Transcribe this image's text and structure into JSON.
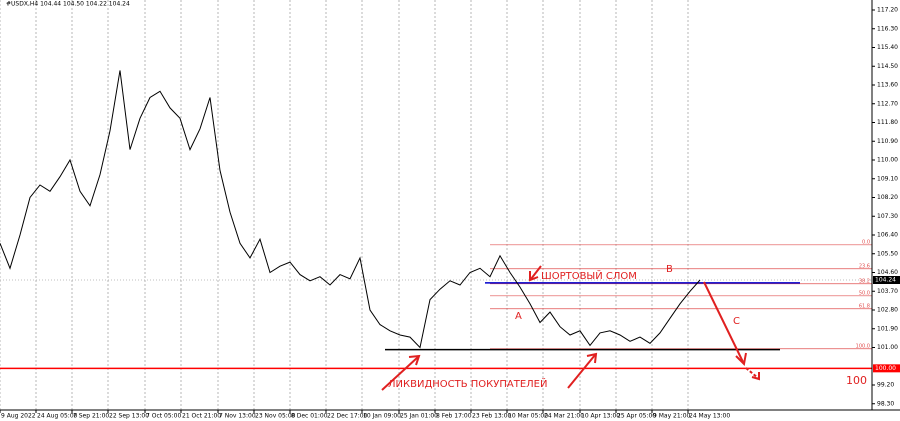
{
  "chart_data": {
    "type": "line",
    "title": "#USDX,H4  104.44 104.50 104.22 104.24",
    "color": "#000000",
    "values": [
      106.0,
      104.8,
      106.4,
      108.2,
      108.8,
      108.5,
      109.2,
      110.0,
      108.5,
      107.8,
      109.3,
      111.4,
      114.3,
      110.5,
      112.0,
      113.0,
      113.3,
      112.5,
      112.0,
      110.5,
      111.5,
      113.0,
      109.5,
      107.5,
      106.0,
      105.3,
      106.2,
      104.6,
      104.9,
      105.1,
      104.5,
      104.2,
      104.4,
      104.0,
      104.5,
      104.3,
      105.3,
      102.8,
      102.1,
      101.8,
      101.6,
      101.5,
      101.0,
      103.3,
      103.8,
      104.2,
      104.0,
      104.6,
      104.8,
      104.4,
      105.4,
      104.6,
      103.9,
      103.1,
      102.2,
      102.7,
      102.0,
      101.6,
      101.8,
      101.1,
      101.7,
      101.8,
      101.6,
      101.3,
      101.5,
      101.2,
      101.7,
      102.4,
      103.1,
      103.7,
      104.24
    ],
    "xlim": [
      0,
      87.2
    ],
    "ylim": [
      98.0,
      117.68
    ],
    "xticks": [
      {
        "value": 0,
        "label": "9 Aug 2022"
      },
      {
        "value": 3.6,
        "label": "24 Aug 05:00"
      },
      {
        "value": 7.2,
        "label": "7 Sep 21:00"
      },
      {
        "value": 10.8,
        "label": "22 Sep 13:00"
      },
      {
        "value": 14.5,
        "label": "7 Oct 05:00"
      },
      {
        "value": 18.1,
        "label": "21 Oct 21:00"
      },
      {
        "value": 21.8,
        "label": "7 Nov 13:00"
      },
      {
        "value": 25.4,
        "label": "23 Nov 05:00"
      },
      {
        "value": 29,
        "label": "8 Dec 01:00"
      },
      {
        "value": 32.6,
        "label": "22 Dec 17:00"
      },
      {
        "value": 36.2,
        "label": "10 Jan 09:00"
      },
      {
        "value": 39.9,
        "label": "25 Jan 01:00"
      },
      {
        "value": 43.5,
        "label": "8 Feb 17:00"
      },
      {
        "value": 47.1,
        "label": "23 Feb 13:00"
      },
      {
        "value": 50.7,
        "label": "10 Mar 05:00"
      },
      {
        "value": 54.3,
        "label": "24 Mar 21:00"
      },
      {
        "value": 58,
        "label": "10 Apr 13:00"
      },
      {
        "value": 61.6,
        "label": "25 Apr 05:00"
      },
      {
        "value": 65.2,
        "label": "9 May 21:00"
      },
      {
        "value": 68.8,
        "label": "24 May 13:00"
      }
    ],
    "yticks": [
      {
        "value": 117.2,
        "label": "117.20"
      },
      {
        "value": 116.3,
        "label": "116.30"
      },
      {
        "value": 115.4,
        "label": "115.40"
      },
      {
        "value": 114.5,
        "label": "114.50"
      },
      {
        "value": 113.6,
        "label": "113.60"
      },
      {
        "value": 112.7,
        "label": "112.70"
      },
      {
        "value": 111.8,
        "label": "111.80"
      },
      {
        "value": 110.9,
        "label": "110.90"
      },
      {
        "value": 110,
        "label": "110.00"
      },
      {
        "value": 109.1,
        "label": "109.10"
      },
      {
        "value": 108.2,
        "label": "108.20"
      },
      {
        "value": 107.3,
        "label": "107.30"
      },
      {
        "value": 106.4,
        "label": "106.40"
      },
      {
        "value": 105.5,
        "label": "105.50"
      },
      {
        "value": 104.6,
        "label": "104.60"
      },
      {
        "value": 103.7,
        "label": "103.70"
      },
      {
        "value": 102.8,
        "label": "102.80"
      },
      {
        "value": 101.9,
        "label": "101.90"
      },
      {
        "value": 101,
        "label": "101.00"
      },
      {
        "value": 99.2,
        "label": "99.20"
      },
      {
        "value": 98.3,
        "label": "98.30"
      }
    ],
    "last_price": 104.24,
    "red_level": {
      "value": 100,
      "label": "100.00",
      "color": "#ff0000"
    },
    "hlines": [
      {
        "value": 100.9,
        "from": 38.5,
        "to": 78,
        "color": "#000000"
      },
      {
        "value": 104.1,
        "from": 48.5,
        "to": 80,
        "color": "#0000cc"
      }
    ],
    "fib": {
      "from": 49,
      "to": 87.2,
      "color": "#e05050",
      "levels": [
        {
          "value": 105.93,
          "label": "0.0"
        },
        {
          "value": 104.78,
          "label": "23.6"
        },
        {
          "value": 104.06,
          "label": "38.2"
        },
        {
          "value": 103.48,
          "label": "50.0"
        },
        {
          "value": 102.86,
          "label": "61.8"
        },
        {
          "value": 100.94,
          "label": "100.0"
        }
      ]
    },
    "annotations": {
      "short_break": "ШОРТОВЫЙ СЛОМ",
      "b": "B",
      "a": "A",
      "c": "C",
      "liquidity": "ЛИКВИДНОСТЬ ПОКУПАТЕЛЕЙ",
      "hundred": "100"
    }
  }
}
